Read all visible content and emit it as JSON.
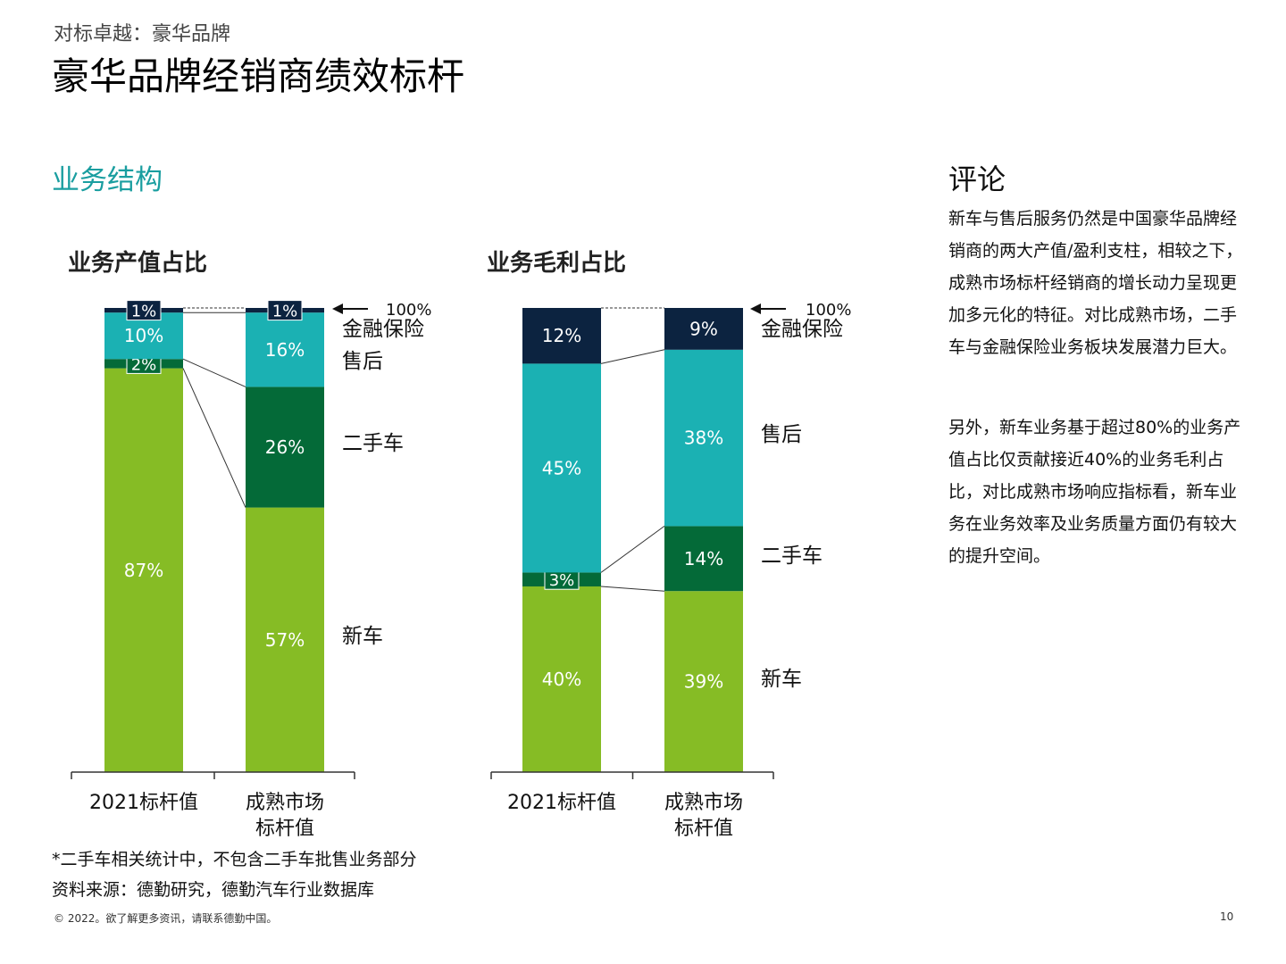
{
  "header": {
    "kicker": "对标卓越：豪华品牌",
    "title": "豪华品牌经销商绩效标杆"
  },
  "section_title": "业务结构",
  "colors": {
    "new_car": "#86bc25",
    "used_car": "#046a38",
    "after_sales": "#1bb1b3",
    "finance": "#0c2340",
    "accent": "#1a9ea0"
  },
  "chart_data": [
    {
      "type": "bar",
      "stacked": true,
      "title": "业务产值占比",
      "categories": [
        "2021标杆值",
        "成熟市场\n标杆值"
      ],
      "series": [
        {
          "name": "新车",
          "values": [
            87,
            57
          ],
          "labels": [
            "87%",
            "57%"
          ]
        },
        {
          "name": "二手车",
          "values": [
            2,
            26
          ],
          "labels": [
            "2%",
            "26%"
          ]
        },
        {
          "name": "售后",
          "values": [
            10,
            16
          ],
          "labels": [
            "10%",
            "16%"
          ]
        },
        {
          "name": "金融保险",
          "values": [
            1,
            1
          ],
          "labels": [
            "1%",
            "1%"
          ]
        }
      ],
      "total_label": "100%",
      "ylim": [
        0,
        100
      ]
    },
    {
      "type": "bar",
      "stacked": true,
      "title": "业务毛利占比",
      "categories": [
        "2021标杆值",
        "成熟市场\n标杆值"
      ],
      "series": [
        {
          "name": "新车",
          "values": [
            40,
            39
          ],
          "labels": [
            "40%",
            "39%"
          ]
        },
        {
          "name": "二手车",
          "values": [
            3,
            14
          ],
          "labels": [
            "3%",
            "14%"
          ]
        },
        {
          "name": "售后",
          "values": [
            45,
            38
          ],
          "labels": [
            "45%",
            "38%"
          ]
        },
        {
          "name": "金融保险",
          "values": [
            12,
            9
          ],
          "labels": [
            "12%",
            "9%"
          ]
        }
      ],
      "total_label": "100%",
      "ylim": [
        0,
        100
      ]
    }
  ],
  "commentary": {
    "title": "评论",
    "paragraphs": [
      "新车与售后服务仍然是中国豪华品牌经销商的两大产值/盈利支柱，相较之下，成熟市场标杆经销商的增长动力呈现更加多元化的特征。对比成熟市场，二手车与金融保险业务板块发展潜力巨大。",
      "另外，新车业务基于超过80%的业务产值占比仅贡献接近40%的业务毛利占比，对比成熟市场响应指标看，新车业务在业务效率及业务质量方面仍有较大的提升空间。"
    ]
  },
  "footnote": "*二手车相关统计中，不包含二手车批售业务部分",
  "source": "资料来源：德勤研究，德勤汽车行业数据库",
  "copyright": "© 2022。欲了解更多资讯，请联系德勤中国。",
  "page_number": "10"
}
